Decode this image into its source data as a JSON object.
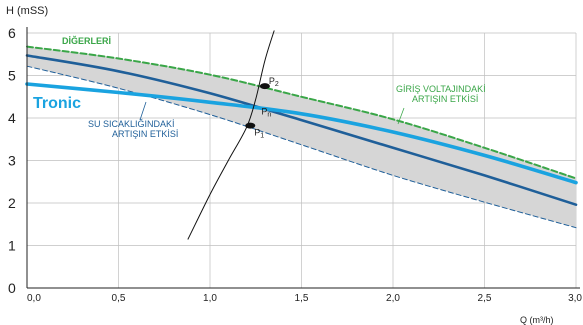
{
  "chart_data": {
    "type": "line",
    "xlabel": "Q (m³/h)",
    "ylabel": "H (mSS)",
    "xlim": [
      0,
      3
    ],
    "ylim": [
      0,
      6
    ],
    "x_ticks": [
      "0,0",
      "0,5",
      "1,0",
      "1,5",
      "2,0",
      "2,5",
      "3,0"
    ],
    "y_ticks": [
      "0",
      "1",
      "2",
      "3",
      "4",
      "5",
      "6"
    ],
    "grid": true,
    "series": [
      {
        "name": "DİĞERLERİ",
        "style": "dashed",
        "color": "#3aa648",
        "x": [
          0,
          0.5,
          1.0,
          1.5,
          2.0,
          2.5,
          3.0
        ],
        "y": [
          5.68,
          5.4,
          5.02,
          4.5,
          3.97,
          3.3,
          2.58
        ]
      },
      {
        "name": "",
        "style": "solid",
        "color": "#1f5f99",
        "x": [
          0,
          0.5,
          1.0,
          1.5,
          2.0,
          2.5,
          3.0
        ],
        "y": [
          5.47,
          5.1,
          4.58,
          3.95,
          3.3,
          2.65,
          1.96
        ]
      },
      {
        "name": "Tronic",
        "style": "solid",
        "color": "#1aa3e0",
        "x": [
          0,
          0.5,
          1.0,
          1.5,
          2.0,
          2.5,
          3.0
        ],
        "y": [
          4.8,
          4.6,
          4.37,
          4.1,
          3.67,
          3.12,
          2.48
        ]
      },
      {
        "name": "",
        "style": "dashed",
        "color": "#1f5f99",
        "x": [
          0,
          0.5,
          1.0,
          1.5,
          2.0,
          2.5,
          3.0
        ],
        "y": [
          5.22,
          4.7,
          4.08,
          3.37,
          2.65,
          2.02,
          1.42
        ]
      },
      {
        "name": "",
        "style": "solid",
        "color": "#111111",
        "x": [
          0.88,
          1.0,
          1.1,
          1.2,
          1.25,
          1.3,
          1.35
        ],
        "y": [
          1.15,
          2.2,
          3.0,
          3.78,
          4.45,
          5.35,
          6.05
        ]
      }
    ],
    "points": [
      {
        "label": "P",
        "sub": "1",
        "x": 1.22,
        "y": 3.82
      },
      {
        "label": "P",
        "sub": "2",
        "x": 1.3,
        "y": 4.75
      },
      {
        "label": "P",
        "sub": "n",
        "x": 1.27,
        "y": 4.3
      }
    ],
    "annotations": [
      {
        "text": "DİĞERLERİ",
        "color": "#3aa648"
      },
      {
        "text": "Tronic",
        "color": "#1aa3e0"
      },
      {
        "text": "GİRİŞ VOLTAJINDAKİ",
        "color": "#3aa648"
      },
      {
        "text": "ARTIŞIN ETKİSİ",
        "color": "#3aa648"
      },
      {
        "text": "SU SICAKLIĞINDAKİ",
        "color": "#1f5f99"
      },
      {
        "text": "ARTIŞIN ETKİSİ",
        "color": "#1f5f99"
      }
    ],
    "band_fill": "#d6d6d6",
    "grid_color": "#bfbfbf"
  }
}
